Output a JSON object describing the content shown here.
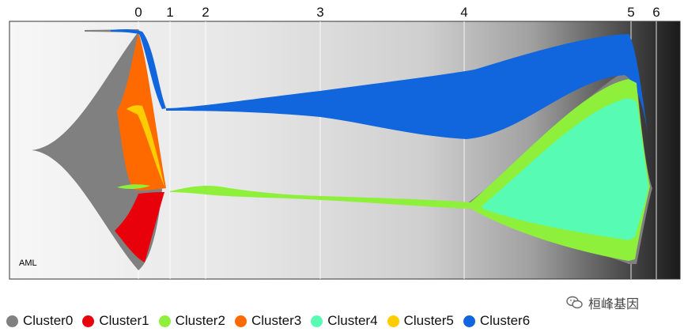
{
  "chart_data": {
    "type": "fishplot",
    "sample_label": "AML",
    "timepoints": [
      {
        "label": "0",
        "t": 0
      },
      {
        "label": "1",
        "t": 1
      },
      {
        "label": "2",
        "t": 2
      },
      {
        "label": "3",
        "t": 3
      },
      {
        "label": "4",
        "t": 4
      },
      {
        "label": "5",
        "t": 5
      },
      {
        "label": "6",
        "t": 6
      }
    ],
    "series": [
      {
        "name": "Cluster0",
        "color": "#808080"
      },
      {
        "name": "Cluster1",
        "color": "#e8000b"
      },
      {
        "name": "Cluster2",
        "color": "#8ef03b"
      },
      {
        "name": "Cluster3",
        "color": "#ff6a00"
      },
      {
        "name": "Cluster4",
        "color": "#57fbb4"
      },
      {
        "name": "Cluster5",
        "color": "#ffcc00"
      },
      {
        "name": "Cluster6",
        "color": "#1166dd"
      }
    ],
    "legend_position": "bottom",
    "background": "gradient light to dark"
  },
  "watermark": "桓峰基因"
}
